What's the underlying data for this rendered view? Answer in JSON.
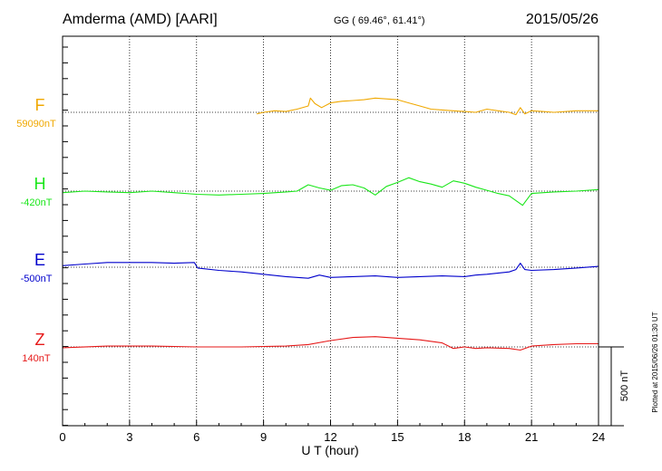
{
  "header": {
    "station": "Amderma (AMD)  [AARI]",
    "coords": "GG ( 69.46°,  61.41°)",
    "date": "2015/05/26"
  },
  "footer": {
    "plotted": "Plotted at 2015/06/26 01:30 UT"
  },
  "chart_data": {
    "type": "line",
    "xlabel": "U T (hour)",
    "xlim": [
      0,
      24
    ],
    "xticks": [
      "0",
      "3",
      "6",
      "9",
      "12",
      "15",
      "18",
      "21",
      "24"
    ],
    "scale_bar": "500 nT",
    "ylabel": "",
    "series": [
      {
        "name": "F",
        "baseline_label": "59090nT",
        "color": "#f0a800",
        "x": [
          8.7,
          9.0,
          9.5,
          10.0,
          10.5,
          11.0,
          11.1,
          11.3,
          11.6,
          12.0,
          12.5,
          13.0,
          13.5,
          14.0,
          14.5,
          15.0,
          15.5,
          16.0,
          16.5,
          17.0,
          17.5,
          18.0,
          18.5,
          19.0,
          19.5,
          20.0,
          20.3,
          20.5,
          20.7,
          21.0,
          21.5,
          22.0,
          23.0,
          24.0
        ],
        "values": [
          -10,
          0,
          10,
          5,
          20,
          40,
          90,
          55,
          30,
          60,
          70,
          75,
          80,
          90,
          85,
          80,
          60,
          40,
          20,
          15,
          10,
          5,
          0,
          20,
          10,
          0,
          -15,
          30,
          -10,
          10,
          5,
          0,
          10,
          10
        ]
      },
      {
        "name": "H",
        "baseline_label": "-420nT",
        "color": "#19e619",
        "x": [
          0,
          1,
          2,
          3,
          4,
          5,
          6,
          7,
          8,
          9,
          10,
          10.5,
          11,
          11.5,
          12,
          12.5,
          13,
          13.5,
          14,
          14.5,
          15,
          15.5,
          16,
          16.5,
          17,
          17.5,
          18,
          18.5,
          19,
          19.5,
          20,
          20.3,
          20.6,
          21,
          22,
          23,
          24
        ],
        "values": [
          -10,
          0,
          -5,
          -10,
          0,
          -10,
          -20,
          -25,
          -20,
          -15,
          -5,
          0,
          40,
          20,
          5,
          35,
          40,
          20,
          -25,
          30,
          55,
          85,
          60,
          45,
          25,
          65,
          50,
          25,
          5,
          -15,
          -30,
          -60,
          -90,
          -15,
          -5,
          0,
          10
        ]
      },
      {
        "name": "E",
        "baseline_label": "-500nT",
        "color": "#0000cc",
        "x": [
          0,
          1,
          2,
          3,
          4,
          5,
          5.9,
          6.05,
          7,
          8,
          9,
          10,
          11,
          11.5,
          12,
          13,
          14,
          15,
          16,
          17,
          18,
          18.5,
          19,
          20,
          20.3,
          20.5,
          20.7,
          21,
          22,
          23,
          24
        ],
        "values": [
          10,
          20,
          30,
          30,
          30,
          25,
          30,
          -5,
          -20,
          -30,
          -45,
          -60,
          -70,
          -50,
          -65,
          -60,
          -55,
          -65,
          -60,
          -55,
          -60,
          -50,
          -45,
          -30,
          -15,
          25,
          -15,
          -20,
          -15,
          -5,
          5
        ]
      },
      {
        "name": "Z",
        "baseline_label": "140nT",
        "color": "#e61919",
        "x": [
          0,
          2,
          4,
          6,
          8,
          10,
          11,
          12,
          13,
          14,
          15,
          16,
          17,
          17.5,
          18,
          18.5,
          19,
          20,
          20.5,
          21,
          22,
          23,
          24
        ],
        "values": [
          -5,
          5,
          5,
          0,
          0,
          5,
          15,
          40,
          60,
          65,
          55,
          45,
          25,
          -10,
          0,
          -10,
          -5,
          -10,
          -20,
          5,
          15,
          20,
          20
        ]
      }
    ]
  }
}
